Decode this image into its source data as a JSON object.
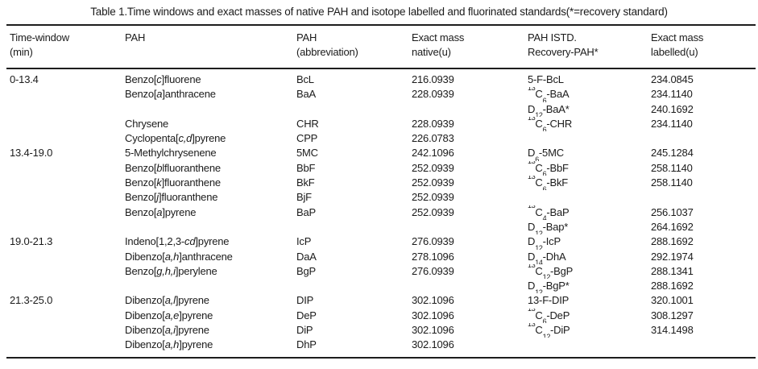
{
  "caption": "Table 1.Time windows and exact masses of native PAH and isotope labelled and fluorinated standards(*=recovery standard)",
  "table": {
    "column_keys": [
      "time_window",
      "pah",
      "abbreviation",
      "exact_mass_native",
      "istd",
      "exact_mass_labelled"
    ],
    "columns": [
      {
        "id": "time-window",
        "line1": "Time-window",
        "line2": "(min)"
      },
      {
        "id": "pah",
        "line1": "PAH",
        "line2": ""
      },
      {
        "id": "pah-abbreviation",
        "line1": "PAH",
        "line2": "(abbreviation)"
      },
      {
        "id": "exact-mass-native",
        "line1": "Exact mass",
        "line2": "native(u)"
      },
      {
        "id": "pah-istd",
        "line1": "PAH ISTD.",
        "line2": "Recovery-PAH*"
      },
      {
        "id": "exact-mass-labelled",
        "line1": "Exact mass",
        "line2": "labelled(u)"
      }
    ],
    "rows": [
      {
        "time_window": "0-13.4",
        "pah": "Benzo[<i>c</i>]fluorene",
        "abbreviation": "BcL",
        "exact_mass_native": "216.0939",
        "istd": "5-F-BcL",
        "exact_mass_labelled": "234.0845"
      },
      {
        "time_window": "",
        "pah": "Benzo[<i>a</i>]anthracene",
        "abbreviation": "BaA",
        "exact_mass_native": "228.0939",
        "istd": "<sup>13</sup>C<sub>6</sub>-BaA",
        "exact_mass_labelled": "234.1140"
      },
      {
        "time_window": "",
        "pah": "",
        "abbreviation": "",
        "exact_mass_native": "",
        "istd": "D<sub>12</sub>-BaA*",
        "exact_mass_labelled": "240.1692"
      },
      {
        "time_window": "",
        "pah": "Chrysene",
        "abbreviation": "CHR",
        "exact_mass_native": "228.0939",
        "istd": "<sup>13</sup>C<sub>6</sub>-CHR",
        "exact_mass_labelled": "234.1140"
      },
      {
        "time_window": "",
        "pah": "Cyclopenta[<i>c,d</i>]pyrene",
        "abbreviation": "CPP",
        "exact_mass_native": "226.0783",
        "istd": "",
        "exact_mass_labelled": ""
      },
      {
        "time_window": "13.4-19.0",
        "pah": "5-Methylchrysenene",
        "abbreviation": "5MC",
        "exact_mass_native": "242.1096",
        "istd": "D<sub>6</sub>-5MC",
        "exact_mass_labelled": "245.1284"
      },
      {
        "time_window": "",
        "pah": "Benzo[<i>b</i>lfluoranthene",
        "abbreviation": "BbF",
        "exact_mass_native": "252.0939",
        "istd": "<sup>13</sup>C<sub>6</sub>-BbF",
        "exact_mass_labelled": "258.1140"
      },
      {
        "time_window": "",
        "pah": "Benzo[<i>k</i>]fluoranthene",
        "abbreviation": "BkF",
        "exact_mass_native": "252.0939",
        "istd": "<sup>13</sup>C<sub>6</sub>-BkF",
        "exact_mass_labelled": "258.1140"
      },
      {
        "time_window": "",
        "pah": "Benzo[<i>j</i>]fluoranthene",
        "abbreviation": "BjF",
        "exact_mass_native": "252.0939",
        "istd": "",
        "exact_mass_labelled": ""
      },
      {
        "time_window": "",
        "pah": "Benzo[<i>a</i>]pyrene",
        "abbreviation": "BaP",
        "exact_mass_native": "252.0939",
        "istd": "<sup>13</sup>C<sub>4</sub>-BaP",
        "exact_mass_labelled": "256.1037"
      },
      {
        "time_window": "",
        "pah": "",
        "abbreviation": "",
        "exact_mass_native": "",
        "istd": "D<sub>12</sub>-Bap*",
        "exact_mass_labelled": "264.1692"
      },
      {
        "time_window": "19.0-21.3",
        "pah": "Indeno[1,2,3-<i>cd</i>]pyrene",
        "abbreviation": "IcP",
        "exact_mass_native": "276.0939",
        "istd": "D<sub>12</sub>-IcP",
        "exact_mass_labelled": "288.1692"
      },
      {
        "time_window": "",
        "pah": "Dibenzo[<i>a,h</i>]anthracene",
        "abbreviation": "DaA",
        "exact_mass_native": "278.1096",
        "istd": "D<sub>14</sub>-DhA",
        "exact_mass_labelled": "292.1974"
      },
      {
        "time_window": "",
        "pah": "Benzo[<i>g,h,i</i>]perylene",
        "abbreviation": "BgP",
        "exact_mass_native": "276.0939",
        "istd": "<sup>13</sup>C<sub>12</sub>-BgP",
        "exact_mass_labelled": "288.1341"
      },
      {
        "time_window": "",
        "pah": "",
        "abbreviation": "",
        "exact_mass_native": "",
        "istd": "D<sub>12</sub>-BgP*",
        "exact_mass_labelled": "288.1692"
      },
      {
        "time_window": "21.3-25.0",
        "pah": "Dibenzo[<i>a,l</i>]pyrene",
        "abbreviation": "DIP",
        "exact_mass_native": "302.1096",
        "istd": "13-F-DIP",
        "exact_mass_labelled": "320.1001"
      },
      {
        "time_window": "",
        "pah": "Dibenzo[<i>a,e</i>]pyrene",
        "abbreviation": "DeP",
        "exact_mass_native": "302.1096",
        "istd": "<sup>13</sup>C<sub>6</sub>-DeP",
        "exact_mass_labelled": "308.1297"
      },
      {
        "time_window": "",
        "pah": "Dibenzo[<i>a,i</i>]pyrene",
        "abbreviation": "DiP",
        "exact_mass_native": "302.1096",
        "istd": "<sup>13</sup>C<sub>12</sub>-DiP",
        "exact_mass_labelled": "314.1498"
      },
      {
        "time_window": "",
        "pah": "Dibenzo[<i>a,h</i>]pyrene",
        "abbreviation": "DhP",
        "exact_mass_native": "302.1096",
        "istd": "",
        "exact_mass_labelled": ""
      }
    ]
  }
}
